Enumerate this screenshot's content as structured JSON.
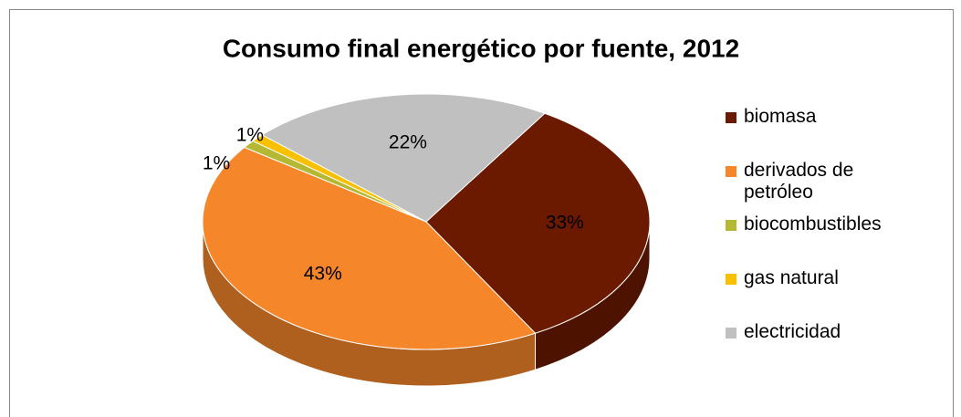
{
  "chart_data": {
    "type": "pie",
    "title": "Consumo final energético por fuente, 2012",
    "categories": [
      "biomasa",
      "derivados de petróleo",
      "biocombustibles",
      "gas natural",
      "electricidad"
    ],
    "values": [
      33,
      43,
      1,
      1,
      22
    ],
    "value_labels": [
      "33%",
      "43%",
      "1%",
      "1%",
      "22%"
    ],
    "colors": [
      "#6b1a00",
      "#f5862a",
      "#b5b832",
      "#f9c000",
      "#c0c0c0"
    ],
    "legend": "right"
  }
}
